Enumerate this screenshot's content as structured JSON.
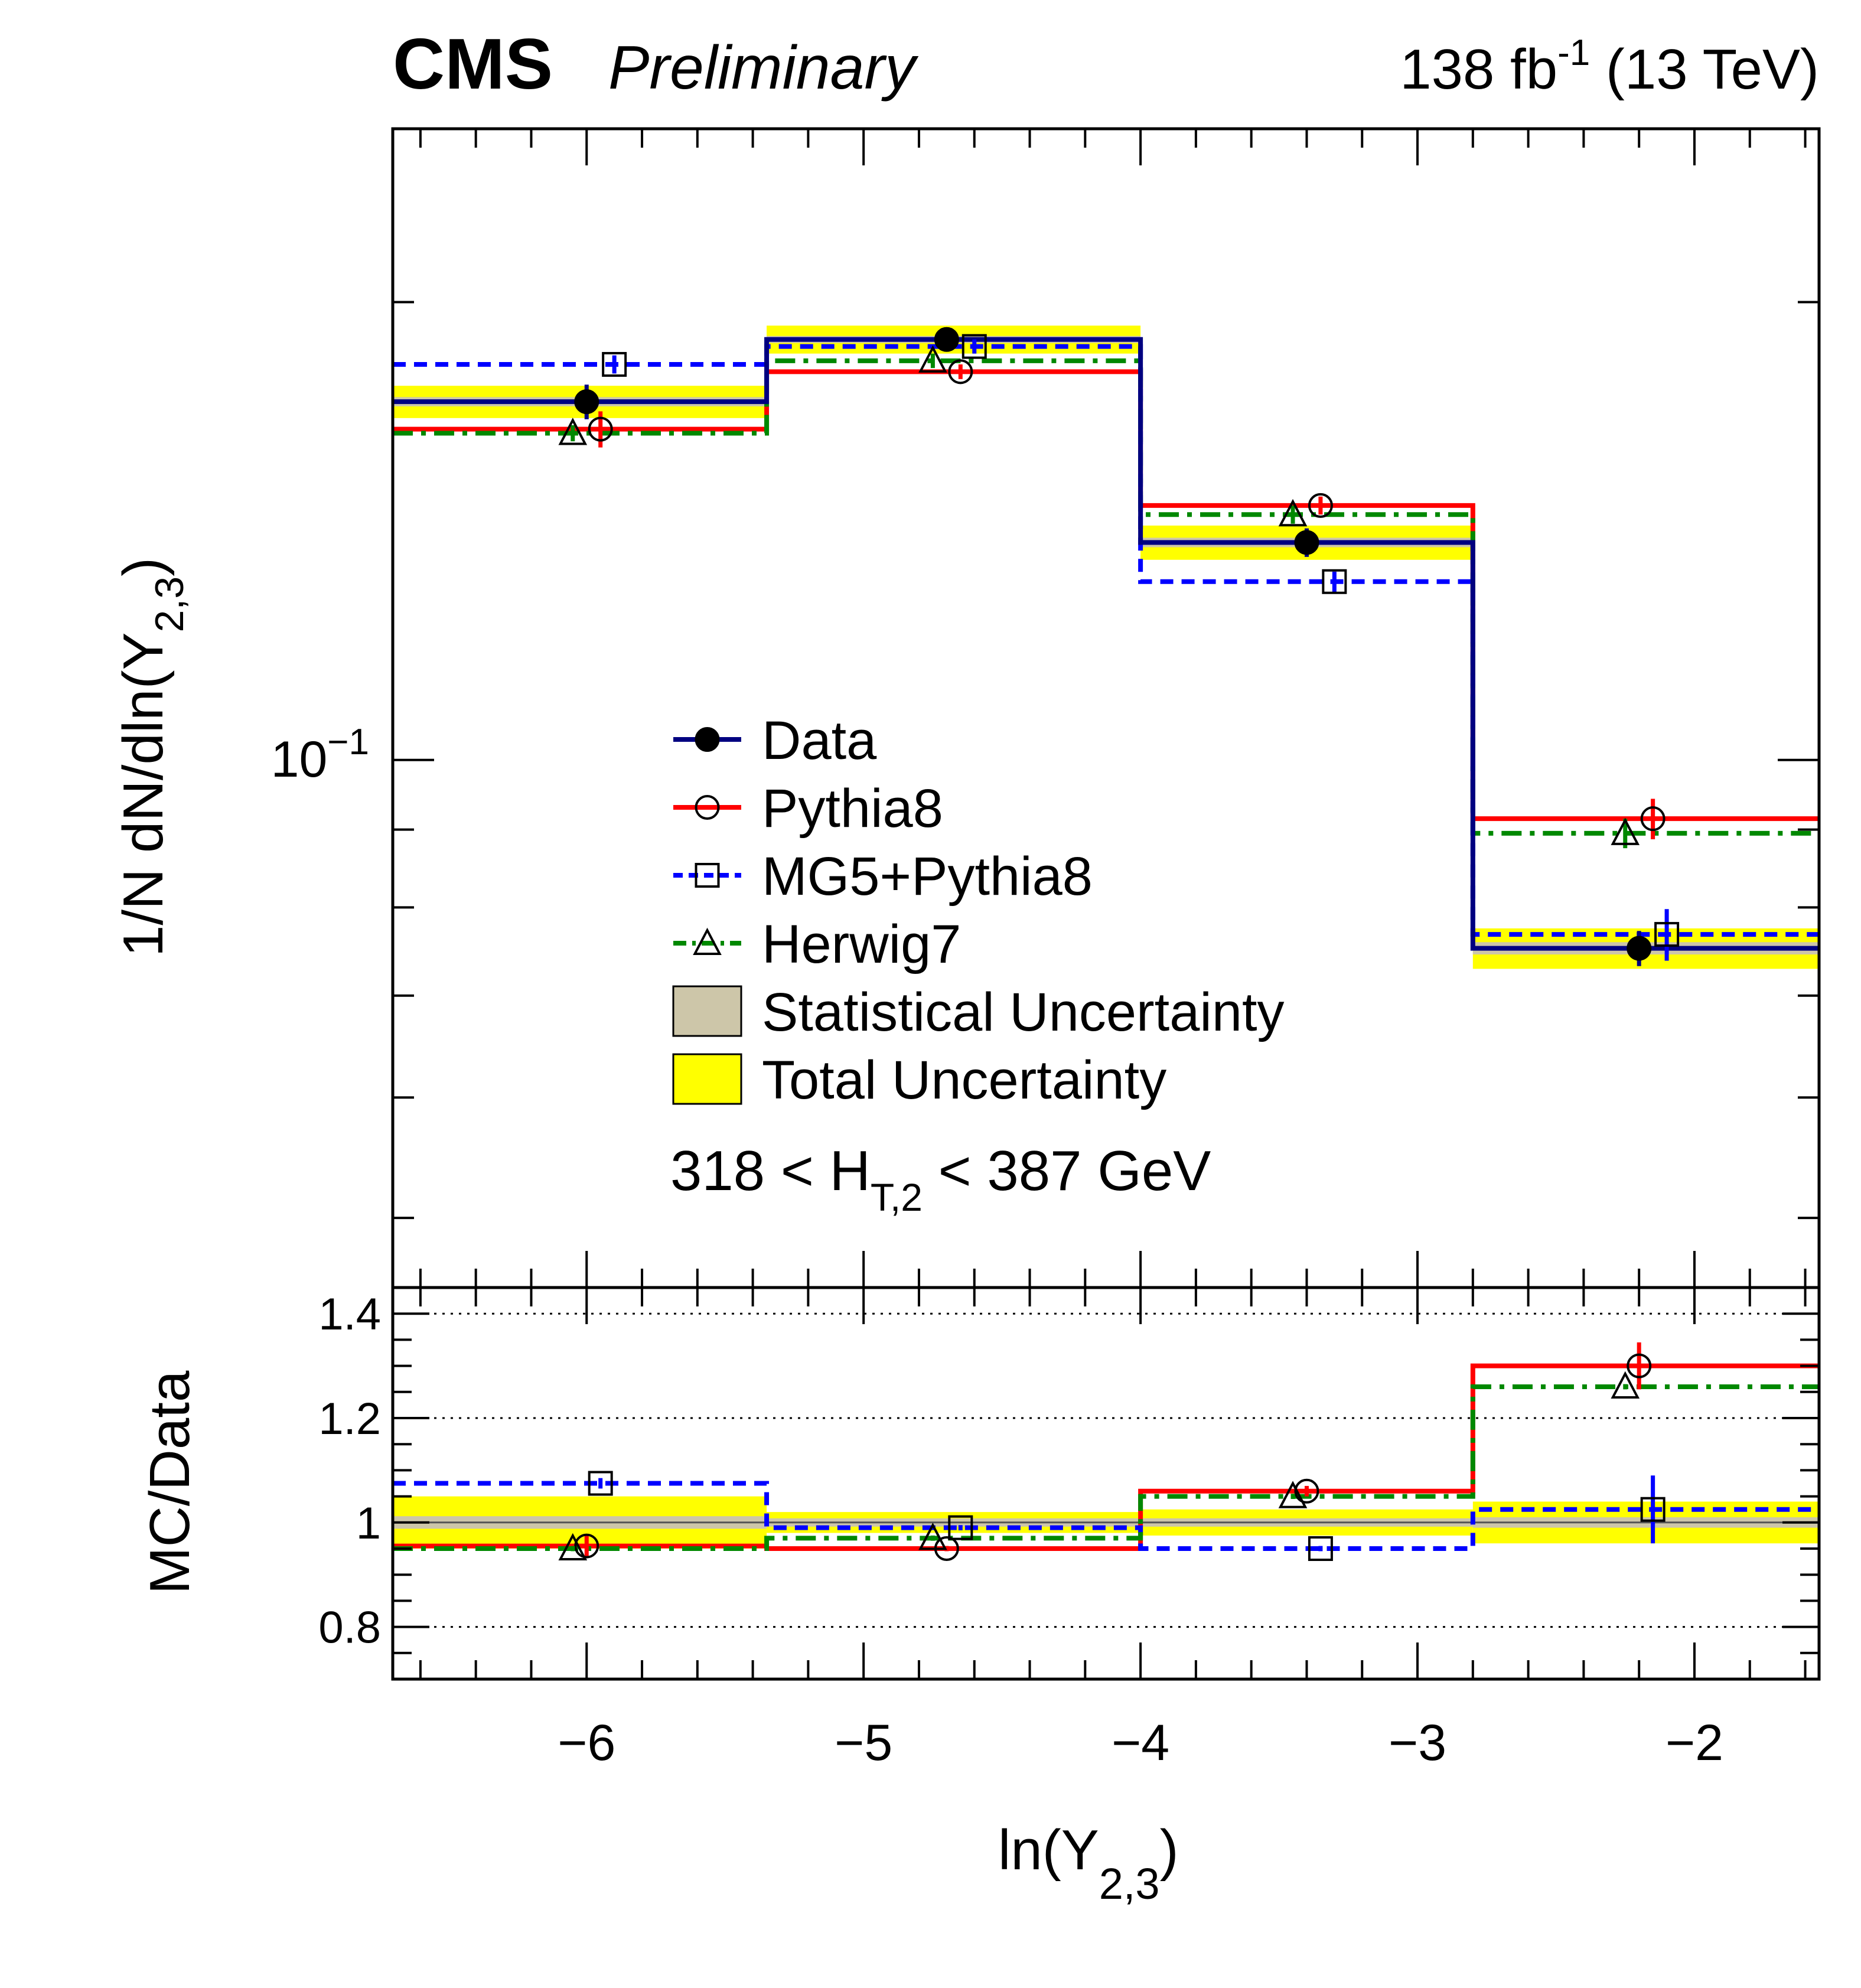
{
  "header": {
    "experiment": "CMS",
    "status": "Preliminary",
    "lumi_value": "138 fb",
    "lumi_exp": "-1",
    "energy": " (13 TeV)"
  },
  "colors": {
    "Data": "#000080",
    "Pythia8": "#ff0000",
    "MG5+Pythia8": "#0000ff",
    "Herwig7": "#008800",
    "stat_band": "#cdc6a9",
    "total_band": "#ffff00"
  },
  "chart_data": [
    {
      "type": "line",
      "panel": "main",
      "ylabel_main": "1/N dN/dln(Y",
      "ylabel_sub": "2,3",
      "ylabel_close": ")",
      "yscale": "log",
      "xlim": [
        -6.7,
        -1.55
      ],
      "ylim": [
        0.045,
        0.26
      ],
      "ytick_label_base": "10",
      "ytick_label_exp": "−1",
      "annotation_main": "318 < H",
      "annotation_sub": "T,2",
      "annotation_rest": " < 387 GeV",
      "bins": [
        [
          -6.7,
          -5.35
        ],
        [
          -5.35,
          -4.0
        ],
        [
          -4.0,
          -2.8
        ],
        [
          -2.8,
          -1.55
        ]
      ],
      "series": [
        {
          "name": "Data",
          "marker": "filled-circle",
          "x": [
            -6.0,
            -4.7,
            -3.4,
            -2.2
          ],
          "values": [
            0.172,
            0.189,
            0.139,
            0.0752
          ],
          "errors": [
            0.0045,
            0.002,
            0.003,
            0.002
          ],
          "total_unc": [
            0.0042,
            0.004,
            0.0036,
            0.0023
          ],
          "stat_unc": [
            0.0012,
            0.001,
            0.001,
            0.0007
          ]
        },
        {
          "name": "Pythia8",
          "marker": "open-circle",
          "x": [
            -5.95,
            -4.65,
            -3.35,
            -2.15
          ],
          "values": [
            0.165,
            0.18,
            0.147,
            0.0915
          ],
          "errors": [
            0.0045,
            0.002,
            0.002,
            0.0028
          ]
        },
        {
          "name": "MG5+Pythia8",
          "marker": "open-square",
          "x": [
            -5.9,
            -4.6,
            -3.3,
            -2.1
          ],
          "values": [
            0.182,
            0.187,
            0.131,
            0.0768
          ],
          "errors": [
            0.0025,
            0.002,
            0.002,
            0.003
          ]
        },
        {
          "name": "Herwig7",
          "marker": "open-triangle",
          "x": [
            -6.05,
            -4.75,
            -3.45,
            -2.25
          ],
          "values": [
            0.164,
            0.183,
            0.145,
            0.0895
          ],
          "errors": [
            0.002,
            0.002,
            0.002,
            0.002
          ]
        }
      ],
      "legend": {
        "placement": "center",
        "entries": [
          {
            "name": "Data",
            "style": "line-filled-circle"
          },
          {
            "name": "Pythia8",
            "style": "line-open-circle"
          },
          {
            "name": "MG5+Pythia8",
            "style": "dashed-open-square"
          },
          {
            "name": "Herwig7",
            "style": "dashdot-open-triangle"
          },
          {
            "name": "Statistical Uncertainty",
            "style": "box-stat"
          },
          {
            "name": "Total Uncertainty",
            "style": "box-total"
          }
        ]
      }
    },
    {
      "type": "line",
      "panel": "ratio",
      "xlabel_main": "ln(Y",
      "xlabel_sub": "2,3",
      "xlabel_close": ")",
      "ylabel": "MC/Data",
      "xlim": [
        -6.7,
        -1.55
      ],
      "ylim": [
        0.7,
        1.45
      ],
      "xticks": [
        -6,
        -5,
        -4,
        -3,
        -2
      ],
      "xtick_labels": [
        "−6",
        "−5",
        "−4",
        "−3",
        "−2"
      ],
      "yticks": [
        0.8,
        1,
        1.2,
        1.4
      ],
      "ytick_labels": [
        "0.8",
        "1",
        "1.2",
        "1.4"
      ],
      "grid_lines": [
        0.8,
        1.2,
        1.4
      ],
      "bins": [
        [
          -6.7,
          -5.35
        ],
        [
          -5.35,
          -4.0
        ],
        [
          -4.0,
          -2.8
        ],
        [
          -2.8,
          -1.55
        ]
      ],
      "total_band": [
        0.05,
        0.02,
        0.025,
        0.04
      ],
      "stat_band": [
        0.012,
        0.008,
        0.008,
        0.01
      ],
      "series": [
        {
          "name": "Pythia8",
          "x": [
            -6.0,
            -4.7,
            -3.4,
            -2.2
          ],
          "values": [
            0.955,
            0.95,
            1.06,
            1.3
          ],
          "errors": [
            0.02,
            0.005,
            0.01,
            0.045
          ]
        },
        {
          "name": "MG5+Pythia8",
          "x": [
            -5.95,
            -4.65,
            -3.35,
            -2.15
          ],
          "values": [
            1.075,
            0.99,
            0.95,
            1.025
          ],
          "errors": [
            0.01,
            0.005,
            0.005,
            0.065
          ]
        },
        {
          "name": "Herwig7",
          "x": [
            -6.05,
            -4.75,
            -3.45,
            -2.25
          ],
          "values": [
            0.95,
            0.97,
            1.05,
            1.26
          ],
          "errors": [
            0.005,
            0.005,
            0.005,
            0.005
          ]
        }
      ]
    }
  ]
}
